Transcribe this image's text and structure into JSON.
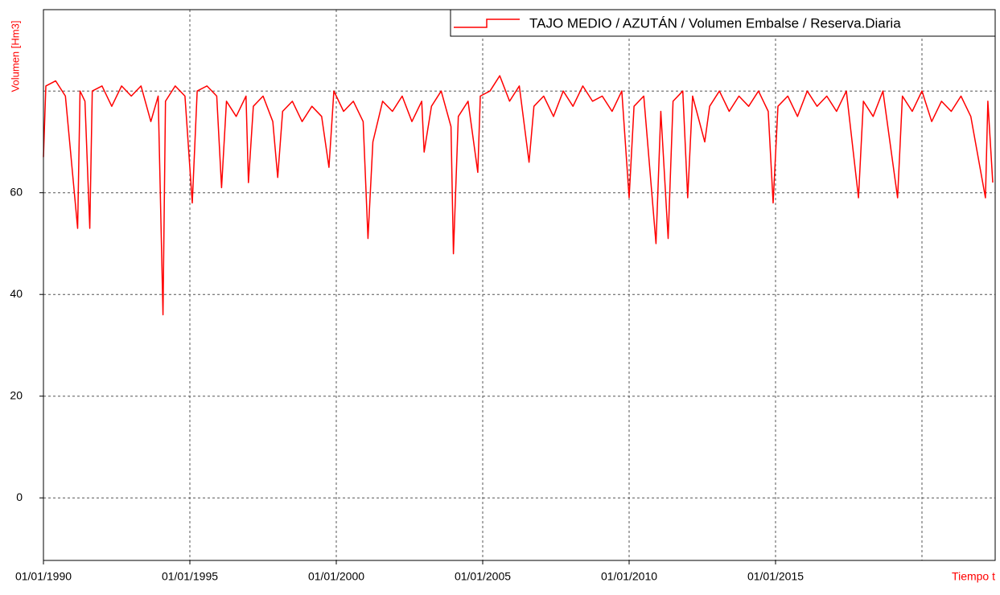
{
  "chart_data": {
    "type": "line",
    "x_label": "Tiempo t",
    "y_label": "Volumen [Hm3]",
    "x": [
      "01/01/1990",
      "01/02/1990",
      "01/06/1990",
      "01/10/1990",
      "01/03/1991",
      "01/04/1991",
      "01/06/1991",
      "01/08/1991",
      "01/09/1991",
      "01/01/1992",
      "01/05/1992",
      "01/09/1992",
      "01/01/1993",
      "01/05/1993",
      "01/09/1993",
      "01/12/1993",
      "01/02/1994",
      "01/03/1994",
      "01/07/1994",
      "01/11/1994",
      "01/02/1995",
      "01/04/1995",
      "01/08/1995",
      "01/12/1995",
      "01/02/1996",
      "01/04/1996",
      "01/08/1996",
      "01/12/1996",
      "01/01/1997",
      "01/03/1997",
      "01/07/1997",
      "01/11/1997",
      "01/01/1998",
      "01/03/1998",
      "01/07/1998",
      "01/11/1998",
      "01/03/1999",
      "01/07/1999",
      "01/10/1999",
      "01/12/1999",
      "01/04/2000",
      "01/08/2000",
      "01/12/2000",
      "01/02/2001",
      "01/04/2001",
      "01/08/2001",
      "01/12/2001",
      "01/04/2002",
      "01/08/2002",
      "01/12/2002",
      "01/01/2003",
      "01/04/2003",
      "01/08/2003",
      "01/12/2003",
      "01/01/2004",
      "01/03/2004",
      "01/07/2004",
      "01/11/2004",
      "01/12/2004",
      "01/04/2005",
      "01/08/2005",
      "01/12/2005",
      "01/04/2006",
      "01/08/2006",
      "01/10/2006",
      "01/02/2007",
      "01/06/2007",
      "01/10/2007",
      "01/02/2008",
      "01/06/2008",
      "01/10/2008",
      "01/02/2009",
      "01/06/2009",
      "01/10/2009",
      "01/01/2010",
      "01/03/2010",
      "01/07/2010",
      "01/12/2010",
      "01/02/2011",
      "01/05/2011",
      "01/07/2011",
      "01/11/2011",
      "01/01/2012",
      "01/03/2012",
      "01/08/2012",
      "01/10/2012",
      "01/02/2013",
      "01/06/2013",
      "01/10/2013",
      "01/02/2014",
      "01/06/2014",
      "01/10/2014",
      "01/12/2014",
      "01/02/2015",
      "01/06/2015",
      "01/10/2015",
      "01/02/2016",
      "01/06/2016",
      "01/10/2016",
      "01/02/2017",
      "01/06/2017",
      "01/11/2017",
      "01/01/2018",
      "01/05/2018",
      "01/09/2018",
      "01/03/2019",
      "01/05/2019",
      "01/09/2019",
      "01/01/2020",
      "01/05/2020",
      "01/09/2020",
      "01/01/2021",
      "01/05/2021",
      "01/09/2021",
      "01/03/2022",
      "01/04/2022",
      "01/06/2022"
    ],
    "series": [
      {
        "name": "TAJO MEDIO / AZUTÁN / Volumen Embalse / Reserva.Diaria",
        "color": "#ff0000",
        "values": [
          67,
          81,
          82,
          79,
          53,
          80,
          78,
          53,
          80,
          81,
          77,
          81,
          79,
          81,
          74,
          79,
          36,
          78,
          81,
          79,
          58,
          80,
          81,
          79,
          61,
          78,
          75,
          79,
          62,
          77,
          79,
          74,
          63,
          76,
          78,
          74,
          77,
          75,
          65,
          80,
          76,
          78,
          74,
          51,
          70,
          78,
          76,
          79,
          74,
          78,
          68,
          77,
          80,
          73,
          48,
          75,
          78,
          64,
          79,
          80,
          83,
          78,
          81,
          66,
          77,
          79,
          75,
          80,
          77,
          81,
          78,
          79,
          76,
          80,
          59,
          77,
          79,
          50,
          76,
          51,
          78,
          80,
          59,
          79,
          70,
          77,
          80,
          76,
          79,
          77,
          80,
          76,
          58,
          77,
          79,
          75,
          80,
          77,
          79,
          76,
          80,
          59,
          78,
          75,
          80,
          59,
          79,
          76,
          80,
          74,
          78,
          76,
          79,
          75,
          59,
          78,
          62
        ]
      }
    ],
    "xlim": [
      "01/01/1990",
      "01/07/2022"
    ],
    "xticks": [
      "01/01/1990",
      "01/01/1995",
      "01/01/2000",
      "01/01/2005",
      "01/01/2010",
      "01/01/2015"
    ],
    "xgrid": [
      "01/01/1995",
      "01/01/2000",
      "01/01/2005",
      "01/01/2010",
      "01/01/2015",
      "01/01/2020"
    ],
    "ylim": [
      -12.3,
      96
    ],
    "yticks": [
      0,
      20,
      40,
      60
    ],
    "ygrid": [
      0,
      20,
      40,
      60,
      80
    ],
    "grid": true,
    "legend": "top-right"
  }
}
